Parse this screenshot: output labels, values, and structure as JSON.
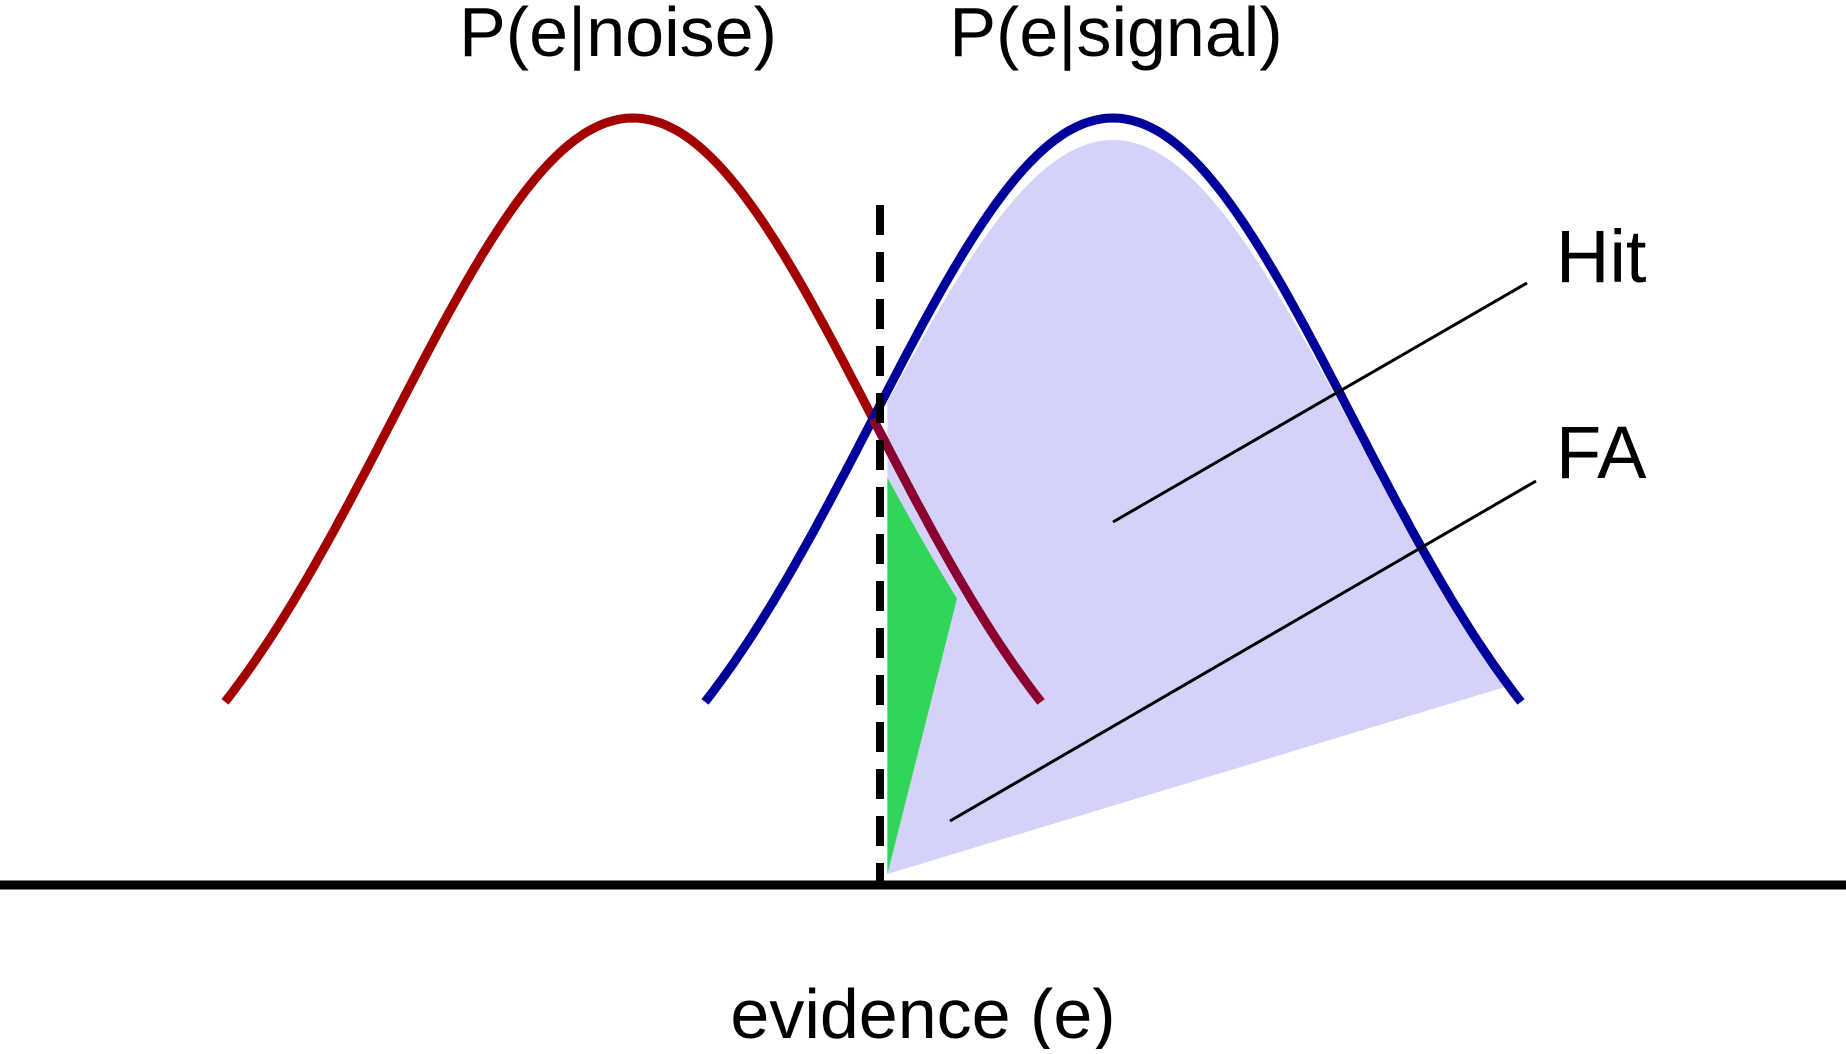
{
  "diagram": {
    "noise_label": "P(e|noise)",
    "signal_label": "P(e|signal)",
    "hit_label": "Hit",
    "fa_label": "FA",
    "axis_label": "evidence (e)"
  },
  "colors": {
    "noise": "#a30000",
    "signal": "#00009a",
    "overlap": "#8a0030",
    "hit_fill": "#d4d2f8",
    "fa_fill": "#2fd65a",
    "axis": "#000000",
    "criterion": "#000000"
  },
  "distributions": {
    "noise_mean": 0,
    "signal_mean": 2,
    "sd": 1,
    "criterion": 1
  }
}
